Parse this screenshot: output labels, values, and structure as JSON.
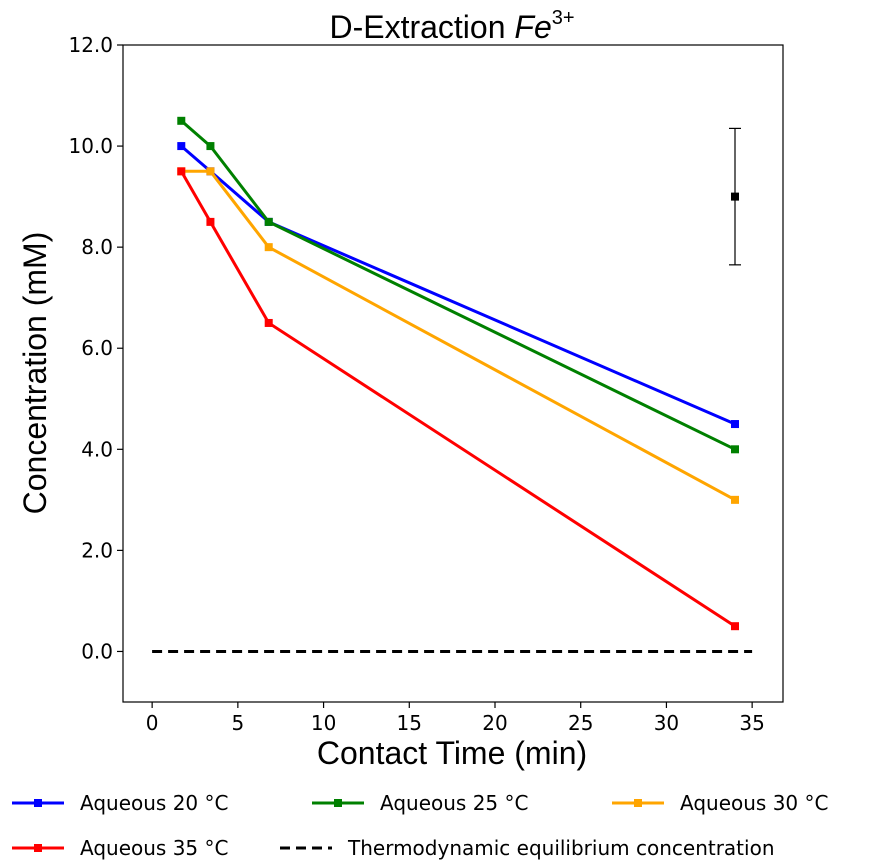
{
  "chart_data": {
    "type": "line",
    "title": "D-Extraction ",
    "title_italic": "Fe",
    "title_superscript": "3+",
    "xlabel": "Contact Time (min)",
    "ylabel": "Concentration (mM)",
    "xlim": [
      -1.7,
      36.8
    ],
    "ylim": [
      -1.0,
      12.0
    ],
    "x_ticks": [
      0,
      5,
      10,
      15,
      20,
      25,
      30,
      35
    ],
    "x_tick_labels": [
      "0",
      "5",
      "10",
      "15",
      "20",
      "25",
      "30",
      "35"
    ],
    "y_ticks": [
      0,
      2,
      4,
      6,
      8,
      10,
      12
    ],
    "y_tick_labels": [
      "0.0",
      "2.0",
      "4.0",
      "6.0",
      "8.0",
      "10.0",
      "12.0"
    ],
    "grid": false,
    "legend_position": "below-plot",
    "series": [
      {
        "name": "Aqueous 20 °C",
        "color": "#0000ff",
        "marker": "square",
        "x": [
          1.7,
          3.4,
          6.8,
          34
        ],
        "y": [
          10.0,
          9.5,
          8.5,
          4.5
        ]
      },
      {
        "name": "Aqueous 25 °C",
        "color": "#008000",
        "marker": "square",
        "x": [
          1.7,
          3.4,
          6.8,
          34
        ],
        "y": [
          10.5,
          10.0,
          8.5,
          4.0
        ]
      },
      {
        "name": "Aqueous 30 °C",
        "color": "#ffa500",
        "marker": "square",
        "x": [
          1.7,
          3.4,
          6.8,
          34
        ],
        "y": [
          9.5,
          9.5,
          8.0,
          3.0
        ]
      },
      {
        "name": "Aqueous 35 °C",
        "color": "#ff0000",
        "marker": "square",
        "x": [
          1.7,
          3.4,
          6.8,
          34
        ],
        "y": [
          9.5,
          8.5,
          6.5,
          0.5
        ]
      },
      {
        "name": "Thermodynamic equilibrium concentration",
        "color": "#000000",
        "style": "dashed",
        "x": [
          0,
          35
        ],
        "y": [
          0,
          0
        ]
      }
    ],
    "error_bar": {
      "color": "#000000",
      "x": 34,
      "y": 9.0,
      "low": 7.65,
      "high": 10.35
    }
  }
}
